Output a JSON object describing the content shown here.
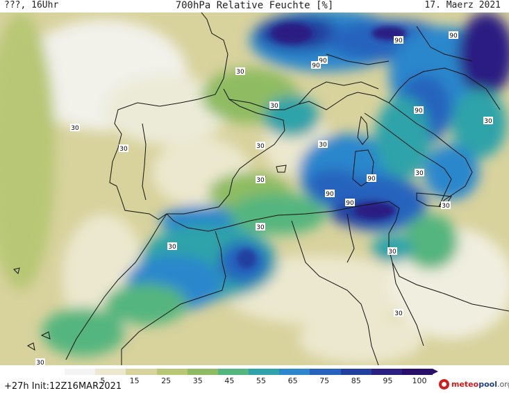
{
  "header": {
    "left": "???, 16Uhr",
    "title": "700hPa Relative Feuchte [%]",
    "date": "17. Maerz 2021"
  },
  "footer": {
    "run_info": "+27h  Init:12Z16MAR2021",
    "logo": {
      "part1": "meteo",
      "part2": "pool",
      "part3": ".org"
    }
  },
  "legend": {
    "ticks": [
      "5",
      "15",
      "25",
      "35",
      "45",
      "55",
      "65",
      "75",
      "85",
      "95",
      "100"
    ],
    "colors": [
      "#f4f4f4",
      "#ece8cf",
      "#d8d29d",
      "#b7c775",
      "#8fbc62",
      "#54b57e",
      "#2fa3a9",
      "#2c87cc",
      "#2763be",
      "#233f9e",
      "#2a1f82",
      "#2a0f6a"
    ]
  },
  "map": {
    "contour_labels": [
      {
        "text": "30"
      },
      {
        "text": "30"
      },
      {
        "text": "30"
      },
      {
        "text": "30"
      },
      {
        "text": "30"
      },
      {
        "text": "30"
      },
      {
        "text": "30"
      },
      {
        "text": "30"
      },
      {
        "text": "30"
      },
      {
        "text": "30"
      },
      {
        "text": "30"
      },
      {
        "text": "30"
      },
      {
        "text": "30"
      },
      {
        "text": "30"
      },
      {
        "text": "30"
      },
      {
        "text": "90"
      },
      {
        "text": "90"
      },
      {
        "text": "90"
      },
      {
        "text": "90"
      },
      {
        "text": "90"
      },
      {
        "text": "90"
      },
      {
        "text": "90"
      },
      {
        "text": "90"
      }
    ]
  }
}
